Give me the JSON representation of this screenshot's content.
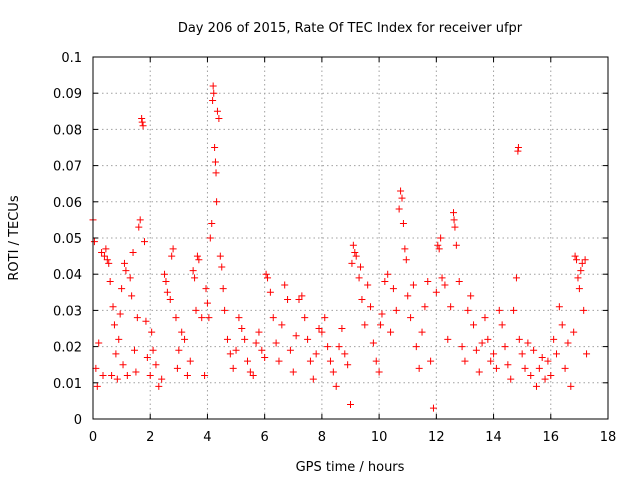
{
  "chart_data": {
    "type": "scatter",
    "title": "Day 206 of 2015, Rate Of TEC Index for receiver ufpr",
    "xlabel": "GPS time / hours",
    "ylabel": "ROTI / TECUs",
    "xlim": [
      0,
      18
    ],
    "ylim": [
      0,
      0.1
    ],
    "grid": true,
    "marker": "+",
    "x_ticks": [
      "0",
      "2",
      "4",
      "6",
      "8",
      "10",
      "12",
      "14",
      "16",
      "18"
    ],
    "y_ticks": [
      "0",
      "0.01",
      "0.02",
      "0.03",
      "0.04",
      "0.05",
      "0.06",
      "0.07",
      "0.08",
      "0.09",
      "0.1"
    ],
    "series": [
      {
        "name": "ROTI",
        "color": "#ff0000",
        "points": [
          [
            0.0,
            0.055
          ],
          [
            0.05,
            0.049
          ],
          [
            0.1,
            0.014
          ],
          [
            0.15,
            0.009
          ],
          [
            0.2,
            0.021
          ],
          [
            0.3,
            0.046
          ],
          [
            0.35,
            0.012
          ],
          [
            0.4,
            0.045
          ],
          [
            0.45,
            0.047
          ],
          [
            0.5,
            0.044
          ],
          [
            0.55,
            0.043
          ],
          [
            0.6,
            0.038
          ],
          [
            0.65,
            0.012
          ],
          [
            0.7,
            0.031
          ],
          [
            0.75,
            0.026
          ],
          [
            0.8,
            0.018
          ],
          [
            0.85,
            0.011
          ],
          [
            0.9,
            0.022
          ],
          [
            0.95,
            0.029
          ],
          [
            1.0,
            0.036
          ],
          [
            1.05,
            0.015
          ],
          [
            1.1,
            0.043
          ],
          [
            1.15,
            0.041
          ],
          [
            1.2,
            0.012
          ],
          [
            1.3,
            0.039
          ],
          [
            1.35,
            0.034
          ],
          [
            1.4,
            0.046
          ],
          [
            1.45,
            0.019
          ],
          [
            1.5,
            0.013
          ],
          [
            1.55,
            0.028
          ],
          [
            1.6,
            0.053
          ],
          [
            1.65,
            0.055
          ],
          [
            1.7,
            0.083
          ],
          [
            1.72,
            0.082
          ],
          [
            1.75,
            0.081
          ],
          [
            1.8,
            0.049
          ],
          [
            1.85,
            0.027
          ],
          [
            1.9,
            0.017
          ],
          [
            2.0,
            0.012
          ],
          [
            2.05,
            0.024
          ],
          [
            2.1,
            0.019
          ],
          [
            2.2,
            0.015
          ],
          [
            2.3,
            0.009
          ],
          [
            2.4,
            0.011
          ],
          [
            2.5,
            0.04
          ],
          [
            2.55,
            0.038
          ],
          [
            2.6,
            0.035
          ],
          [
            2.7,
            0.033
          ],
          [
            2.75,
            0.045
          ],
          [
            2.8,
            0.047
          ],
          [
            2.9,
            0.028
          ],
          [
            2.95,
            0.014
          ],
          [
            3.0,
            0.019
          ],
          [
            3.1,
            0.024
          ],
          [
            3.2,
            0.022
          ],
          [
            3.3,
            0.012
          ],
          [
            3.4,
            0.016
          ],
          [
            3.5,
            0.041
          ],
          [
            3.55,
            0.039
          ],
          [
            3.6,
            0.03
          ],
          [
            3.65,
            0.045
          ],
          [
            3.7,
            0.044
          ],
          [
            3.8,
            0.028
          ],
          [
            3.9,
            0.012
          ],
          [
            3.95,
            0.036
          ],
          [
            4.0,
            0.032
          ],
          [
            4.05,
            0.028
          ],
          [
            4.1,
            0.05
          ],
          [
            4.15,
            0.054
          ],
          [
            4.18,
            0.088
          ],
          [
            4.2,
            0.092
          ],
          [
            4.22,
            0.09
          ],
          [
            4.25,
            0.075
          ],
          [
            4.28,
            0.071
          ],
          [
            4.3,
            0.068
          ],
          [
            4.32,
            0.06
          ],
          [
            4.35,
            0.085
          ],
          [
            4.4,
            0.083
          ],
          [
            4.45,
            0.045
          ],
          [
            4.5,
            0.042
          ],
          [
            4.55,
            0.036
          ],
          [
            4.6,
            0.03
          ],
          [
            4.7,
            0.022
          ],
          [
            4.8,
            0.018
          ],
          [
            4.9,
            0.014
          ],
          [
            5.0,
            0.019
          ],
          [
            5.1,
            0.028
          ],
          [
            5.2,
            0.025
          ],
          [
            5.3,
            0.022
          ],
          [
            5.4,
            0.016
          ],
          [
            5.5,
            0.013
          ],
          [
            5.6,
            0.012
          ],
          [
            5.7,
            0.021
          ],
          [
            5.8,
            0.024
          ],
          [
            5.9,
            0.019
          ],
          [
            6.0,
            0.017
          ],
          [
            6.05,
            0.04
          ],
          [
            6.1,
            0.039
          ],
          [
            6.2,
            0.035
          ],
          [
            6.3,
            0.028
          ],
          [
            6.4,
            0.021
          ],
          [
            6.5,
            0.016
          ],
          [
            6.6,
            0.026
          ],
          [
            6.7,
            0.037
          ],
          [
            6.8,
            0.033
          ],
          [
            6.9,
            0.019
          ],
          [
            7.0,
            0.013
          ],
          [
            7.1,
            0.023
          ],
          [
            7.2,
            0.033
          ],
          [
            7.3,
            0.034
          ],
          [
            7.4,
            0.028
          ],
          [
            7.5,
            0.022
          ],
          [
            7.6,
            0.016
          ],
          [
            7.7,
            0.011
          ],
          [
            7.8,
            0.018
          ],
          [
            7.9,
            0.025
          ],
          [
            8.0,
            0.024
          ],
          [
            8.1,
            0.028
          ],
          [
            8.2,
            0.02
          ],
          [
            8.3,
            0.016
          ],
          [
            8.4,
            0.013
          ],
          [
            8.5,
            0.009
          ],
          [
            8.6,
            0.02
          ],
          [
            8.7,
            0.025
          ],
          [
            8.8,
            0.018
          ],
          [
            8.9,
            0.015
          ],
          [
            9.0,
            0.004
          ],
          [
            9.05,
            0.043
          ],
          [
            9.1,
            0.048
          ],
          [
            9.15,
            0.046
          ],
          [
            9.2,
            0.045
          ],
          [
            9.3,
            0.039
          ],
          [
            9.35,
            0.042
          ],
          [
            9.4,
            0.033
          ],
          [
            9.5,
            0.026
          ],
          [
            9.6,
            0.037
          ],
          [
            9.7,
            0.031
          ],
          [
            9.8,
            0.021
          ],
          [
            9.9,
            0.016
          ],
          [
            10.0,
            0.013
          ],
          [
            10.05,
            0.026
          ],
          [
            10.1,
            0.029
          ],
          [
            10.2,
            0.038
          ],
          [
            10.3,
            0.04
          ],
          [
            10.4,
            0.024
          ],
          [
            10.5,
            0.036
          ],
          [
            10.6,
            0.03
          ],
          [
            10.7,
            0.058
          ],
          [
            10.75,
            0.063
          ],
          [
            10.8,
            0.061
          ],
          [
            10.85,
            0.054
          ],
          [
            10.9,
            0.047
          ],
          [
            10.95,
            0.044
          ],
          [
            11.0,
            0.034
          ],
          [
            11.1,
            0.028
          ],
          [
            11.2,
            0.037
          ],
          [
            11.3,
            0.02
          ],
          [
            11.4,
            0.014
          ],
          [
            11.5,
            0.024
          ],
          [
            11.6,
            0.031
          ],
          [
            11.7,
            0.038
          ],
          [
            11.8,
            0.016
          ],
          [
            11.9,
            0.003
          ],
          [
            12.0,
            0.035
          ],
          [
            12.05,
            0.048
          ],
          [
            12.1,
            0.047
          ],
          [
            12.15,
            0.05
          ],
          [
            12.2,
            0.039
          ],
          [
            12.3,
            0.037
          ],
          [
            12.4,
            0.022
          ],
          [
            12.5,
            0.031
          ],
          [
            12.6,
            0.057
          ],
          [
            12.62,
            0.055
          ],
          [
            12.65,
            0.053
          ],
          [
            12.7,
            0.048
          ],
          [
            12.8,
            0.038
          ],
          [
            12.9,
            0.02
          ],
          [
            13.0,
            0.016
          ],
          [
            13.1,
            0.03
          ],
          [
            13.2,
            0.034
          ],
          [
            13.3,
            0.026
          ],
          [
            13.4,
            0.019
          ],
          [
            13.5,
            0.013
          ],
          [
            13.6,
            0.021
          ],
          [
            13.7,
            0.028
          ],
          [
            13.8,
            0.022
          ],
          [
            13.9,
            0.016
          ],
          [
            14.0,
            0.018
          ],
          [
            14.1,
            0.014
          ],
          [
            14.2,
            0.03
          ],
          [
            14.3,
            0.026
          ],
          [
            14.4,
            0.02
          ],
          [
            14.5,
            0.015
          ],
          [
            14.6,
            0.011
          ],
          [
            14.7,
            0.03
          ],
          [
            14.8,
            0.039
          ],
          [
            14.85,
            0.074
          ],
          [
            14.87,
            0.075
          ],
          [
            14.9,
            0.022
          ],
          [
            15.0,
            0.018
          ],
          [
            15.1,
            0.014
          ],
          [
            15.2,
            0.021
          ],
          [
            15.3,
            0.012
          ],
          [
            15.4,
            0.019
          ],
          [
            15.5,
            0.009
          ],
          [
            15.6,
            0.014
          ],
          [
            15.7,
            0.017
          ],
          [
            15.8,
            0.011
          ],
          [
            15.9,
            0.016
          ],
          [
            16.0,
            0.012
          ],
          [
            16.1,
            0.022
          ],
          [
            16.2,
            0.018
          ],
          [
            16.3,
            0.031
          ],
          [
            16.4,
            0.026
          ],
          [
            16.5,
            0.014
          ],
          [
            16.6,
            0.021
          ],
          [
            16.7,
            0.009
          ],
          [
            16.8,
            0.024
          ],
          [
            16.85,
            0.045
          ],
          [
            16.9,
            0.044
          ],
          [
            16.95,
            0.039
          ],
          [
            17.0,
            0.036
          ],
          [
            17.05,
            0.041
          ],
          [
            17.1,
            0.043
          ],
          [
            17.15,
            0.03
          ],
          [
            17.2,
            0.044
          ],
          [
            17.25,
            0.018
          ]
        ]
      }
    ]
  }
}
